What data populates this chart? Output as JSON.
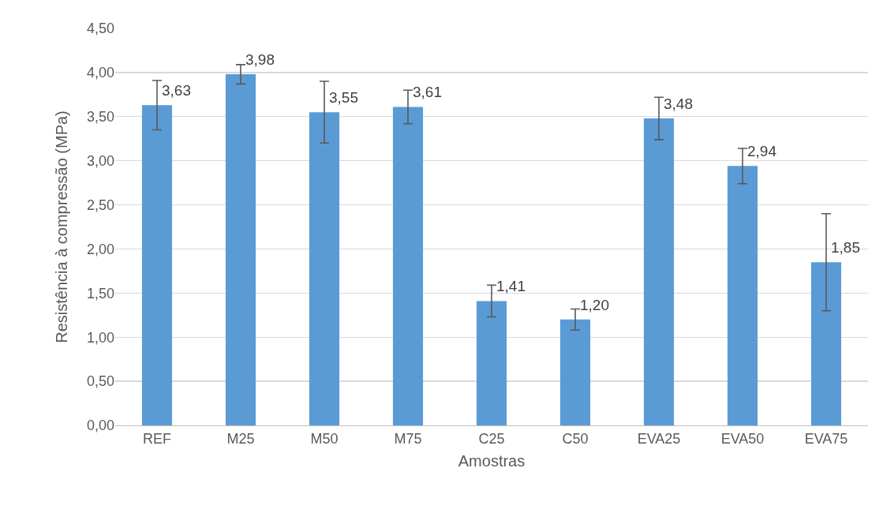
{
  "chart_data": {
    "type": "bar",
    "xlabel": "Amostras",
    "ylabel": "Resistência à compressão (MPa)",
    "categories": [
      "REF",
      "M25",
      "M50",
      "M75",
      "C25",
      "C50",
      "EVA25",
      "EVA50",
      "EVA75"
    ],
    "values": [
      3.63,
      3.98,
      3.55,
      3.61,
      1.41,
      1.2,
      3.48,
      2.94,
      1.85
    ],
    "errors": [
      0.28,
      0.11,
      0.35,
      0.19,
      0.18,
      0.12,
      0.24,
      0.2,
      0.55
    ],
    "value_labels": [
      "3,63",
      "3,98",
      "3,55",
      "3,61",
      "1,41",
      "1,20",
      "3,48",
      "2,94",
      "1,85"
    ],
    "color": "#5b9bd5",
    "grid": "y",
    "ylim": [
      0,
      4.5
    ],
    "yticks": [
      {
        "value": 0,
        "label": "0,00"
      },
      {
        "value": 0.5,
        "label": "0,50"
      },
      {
        "value": 1,
        "label": "1,00"
      },
      {
        "value": 1.5,
        "label": "1,50"
      },
      {
        "value": 2,
        "label": "2,00"
      },
      {
        "value": 2.5,
        "label": "2,50"
      },
      {
        "value": 3,
        "label": "3,00"
      },
      {
        "value": 3.5,
        "label": "3,50"
      },
      {
        "value": 4,
        "label": "4,00"
      },
      {
        "value": 4.5,
        "label": "4,50"
      }
    ]
  }
}
